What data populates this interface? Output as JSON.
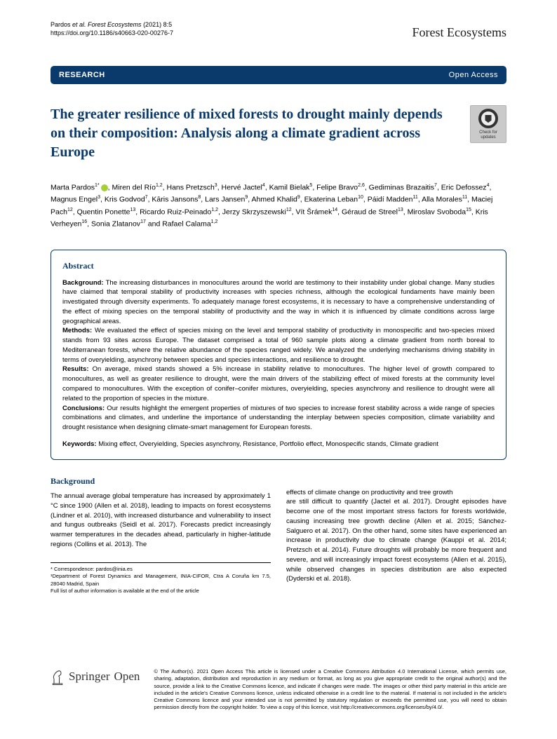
{
  "header": {
    "citation_prefix": "Pardos",
    "citation_etal": " et al. Forest Ecosystems",
    "citation_rest": "            (2021) 8:5 ",
    "doi": "https://doi.org/10.1186/s40663-020-00276-7",
    "journal": "Forest Ecosystems"
  },
  "banner": {
    "left": "RESEARCH",
    "right": "Open Access"
  },
  "updates_badge": {
    "line1": "Check for",
    "line2": "updates"
  },
  "title": "The greater resilience of mixed forests to drought mainly depends on their composition: Analysis along a climate gradient across Europe",
  "authors_html": "Marta Pardos<span class='sup'>1*</span><span class='orcid'></span>, Miren del Río<span class='sup'>1,2</span>, Hans Pretzsch<span class='sup'>3</span>, Hervé Jactel<span class='sup'>4</span>, Kamil Bielak<span class='sup'>5</span>, Felipe Bravo<span class='sup'>2,6</span>, Gediminas Brazaitis<span class='sup'>7</span>, Eric Defossez<span class='sup'>4</span>, Magnus Engel<span class='sup'>3</span>, Kris Godvod<span class='sup'>7</span>, Kāris Jansons<span class='sup'>8</span>, Lars Jansen<span class='sup'>9</span>, Ahmed Khalid<span class='sup'>9</span>, Ekaterina Leban<span class='sup'>10</span>, Páidí Madden<span class='sup'>11</span>, Alla Morales<span class='sup'>11</span>, Maciej Pach<span class='sup'>12</span>, Quentin Ponette<span class='sup'>13</span>, Ricardo Ruiz-Peinado<span class='sup'>1,2</span>, Jerzy Skrzyszewski<span class='sup'>12</span>, Vít Šrámek<span class='sup'>14</span>, Géraud de Streel<span class='sup'>13</span>, Miroslav Svoboda<span class='sup'>15</span>, Kris Verheyen<span class='sup'>16</span>, Sonia Zlatanov<span class='sup'>17</span> and Rafael Calama<span class='sup'>1,2</span>",
  "abstract": {
    "heading": "Abstract",
    "background_label": "Background:",
    "background": " The increasing disturbances in monocultures around the world are testimony to their instability under global change. Many studies have claimed that temporal stability of productivity increases with species richness, although the ecological fundaments have mainly been investigated through diversity experiments. To adequately manage forest ecosystems, it is necessary to have a comprehensive understanding of the effect of mixing species on the temporal stability of productivity and the way in which it is influenced by climate conditions across large geographical areas.",
    "methods_label": "Methods:",
    "methods": " We evaluated the effect of species mixing on the level and temporal stability of productivity in monospecific and two-species mixed stands from 93 sites across Europe. The dataset comprised a total of 960 sample plots along a climate gradient from north boreal to Mediterranean forests, where the relative abundance of the species ranged widely. We analyzed the underlying mechanisms driving stability in terms of overyielding, asynchrony between species and species interactions, and resilience to drought.",
    "results_label": "Results:",
    "results": " On average, mixed stands showed a 5% increase in stability relative to monocultures. The higher level of growth compared to monocultures, as well as greater resilience to drought, were the main drivers of the stabilizing effect of mixed forests at the community level compared to monocultures. With the exception of conifer–conifer mixtures, overyielding, species asynchrony and resilience to drought were all related to the proportion of species in the mixture.",
    "conclusions_label": "Conclusions:",
    "conclusions": " Our results highlight the emergent properties of mixtures of two species to increase forest stability across a wide range of species combinations and climates, and underline the importance of understanding the interplay between species composition, climate variability and drought resistance when designing climate-smart management for European forests.",
    "keywords_label": "Keywords:",
    "keywords": " Mixing effect, Overyielding, Species asynchrony, Resistance, Portfolio effect, Monospecific stands, Climate gradient"
  },
  "section1": {
    "heading": "Background",
    "para_left": "The annual average global temperature has increased by approximately 1 °C since 1900 (Allen et al. 2018), leading to impacts on forest ecosystems (Lindner et al. 2010), with increased disturbance and vulnerability to insect and fungus outbreaks (Seidl et al. 2017). Forecasts predict increasingly warmer temperatures in the decades ahead, particularly in higher-latitude regions (Collins et al. 2013). The",
    "para_right": "effects of climate change on productivity and tree growth",
    "para_right2": "are still difficult to quantify (Jactel et al. 2017). Drought episodes have become one of the most important stress factors for forests worldwide, causing increasing tree growth decline (Allen et al. 2015; Sánchez-Salguero et al. 2017). On the other hand, some sites have experienced an increase in productivity due to climate change (Kauppi et al. 2014; Pretzsch et al. 2014). Future droughts will probably be more frequent and severe, and will increasingly impact forest ecosystems (Allen et al. 2015), while observed changes in species distribution are also expected (Dyderski et al. 2018)."
  },
  "footnotes": {
    "corr": "* Correspondence: pardos@inia.es",
    "aff1": "¹Department of Forest Dynamics and Management, INIA-CIFOR, Ctra A Coruña km 7.5, 28040 Madrid, Spain",
    "rest": "Full list of author information is available at the end of the article"
  },
  "footer": {
    "logo_text": "Springer",
    "logo_open": "Open",
    "license": "© The Author(s). 2021 Open Access This article is licensed under a Creative Commons Attribution 4.0 International License, which permits use, sharing, adaptation, distribution and reproduction in any medium or format, as long as you give appropriate credit to the original author(s) and the source, provide a link to the Creative Commons licence, and indicate if changes were made. The images or other third party material in this article are included in the article's Creative Commons licence, unless indicated otherwise in a credit line to the material. If material is not included in the article's Creative Commons licence and your intended use is not permitted by statutory regulation or exceeds the permitted use, you will need to obtain permission directly from the copyright holder. To view a copy of this licence, visit http://creativecommons.org/licenses/by/4.0/."
  },
  "colors": {
    "banner_bg": "#0a3a6b",
    "accent": "#0a3a6b",
    "orcid": "#a6ce39",
    "badge_bg": "#cacaca"
  }
}
